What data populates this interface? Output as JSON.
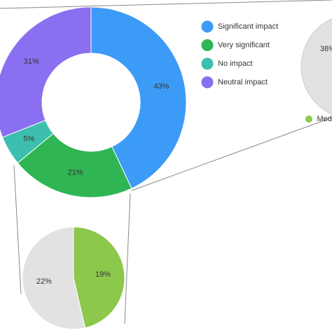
{
  "chart_data": [
    {
      "type": "donut",
      "categories": [
        "Significant impact",
        "Very significant",
        "No impact",
        "Neutral impact"
      ],
      "values": [
        43,
        21,
        5,
        31
      ],
      "value_labels": [
        "43%",
        "21%",
        "5%",
        "31%"
      ],
      "colors": [
        "#3d9bf8",
        "#2fb553",
        "#3cbfae",
        "#8a6ff0"
      ]
    },
    {
      "type": "pie",
      "values": [
        19,
        22
      ],
      "value_labels": [
        "19%",
        "22%"
      ],
      "colors": [
        "#8cc84b",
        "#e2e2e2"
      ]
    },
    {
      "type": "pie",
      "values": [
        38
      ],
      "value_labels": [
        "38%"
      ],
      "colors": [
        "#e2e2e2"
      ],
      "legend": [
        {
          "name": "Medi",
          "color": "#8cc84b"
        }
      ]
    }
  ]
}
